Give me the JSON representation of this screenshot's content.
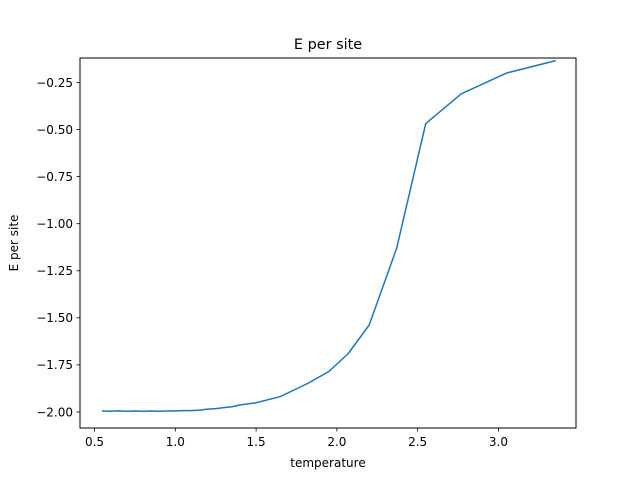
{
  "chart_data": {
    "type": "line",
    "title": "E per site",
    "xlabel": "temperature",
    "ylabel": "E per site",
    "xlim": [
      0.41,
      3.48
    ],
    "ylim": [
      -2.085,
      -0.12
    ],
    "xticks": [
      {
        "value": 0.5,
        "label": "0.5"
      },
      {
        "value": 1.0,
        "label": "1.0"
      },
      {
        "value": 1.5,
        "label": "1.5"
      },
      {
        "value": 2.0,
        "label": "2.0"
      },
      {
        "value": 2.5,
        "label": "2.5"
      },
      {
        "value": 3.0,
        "label": "3.0"
      }
    ],
    "yticks": [
      {
        "value": -2.0,
        "label": "−2.00"
      },
      {
        "value": -1.75,
        "label": "−1.75"
      },
      {
        "value": -1.5,
        "label": "−1.50"
      },
      {
        "value": -1.25,
        "label": "−1.25"
      },
      {
        "value": -1.0,
        "label": "−1.00"
      },
      {
        "value": -0.75,
        "label": "−0.75"
      },
      {
        "value": -0.5,
        "label": "−0.50"
      },
      {
        "value": -0.25,
        "label": "−0.25"
      }
    ],
    "grid": false,
    "series": [
      {
        "color": "#1f77b4",
        "x": [
          0.55,
          0.6,
          0.65,
          0.7,
          0.75,
          0.8,
          0.85,
          0.9,
          0.95,
          1.0,
          1.05,
          1.1,
          1.15,
          1.2,
          1.25,
          1.3,
          1.35,
          1.4,
          1.5,
          1.65,
          1.82,
          1.95,
          2.07,
          2.2,
          2.37,
          2.55,
          2.77,
          3.05,
          3.35
        ],
        "y": [
          -1.995,
          -1.996,
          -1.994,
          -1.996,
          -1.995,
          -1.996,
          -1.995,
          -1.996,
          -1.995,
          -1.994,
          -1.993,
          -1.993,
          -1.99,
          -1.985,
          -1.982,
          -1.977,
          -1.972,
          -1.963,
          -1.951,
          -1.918,
          -1.848,
          -1.785,
          -1.69,
          -1.538,
          -1.13,
          -0.468,
          -0.31,
          -0.2,
          -0.135
        ]
      }
    ]
  }
}
